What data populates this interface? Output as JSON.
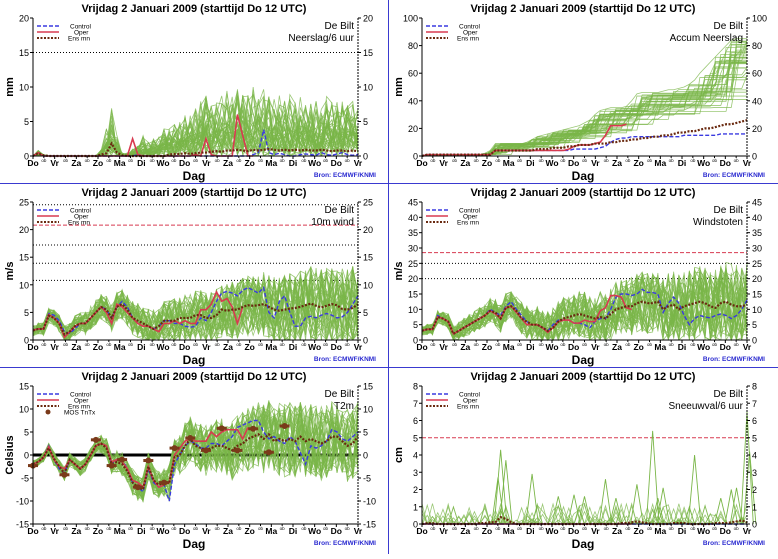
{
  "colors": {
    "control": "#3a3ae0",
    "oper": "#d83a50",
    "ensmn": "#6a2a10",
    "members": "#7ab648",
    "mos": "#7a3a1a",
    "source": "#2a2ad0",
    "separator": "#3a3ad0"
  },
  "common": {
    "title": "Vrijdag    2 Januari   2009  (starttijd  Do 12 UTC)",
    "xlabel": "Dag",
    "source": "Bron:  ECMWF/KNMI",
    "day_labels": [
      "Do",
      "Vr",
      "Za",
      "Zo",
      "Ma",
      "Di",
      "Wo",
      "Do",
      "Vr",
      "Za",
      "Zo",
      "Ma",
      "Di",
      "Wo",
      "Do",
      "Vr"
    ],
    "minor_label": "ob",
    "legend": {
      "control": "Control",
      "oper": "Oper",
      "ensmn": "Ens mn",
      "mos": "MOS TnTx"
    }
  },
  "chart_data": [
    {
      "type": "line",
      "station": "De Bilt",
      "variable": "Neerslag/6 uur",
      "ylabel": "mm",
      "ylim": [
        0,
        20
      ],
      "yticks": [
        0,
        5,
        10,
        15,
        20
      ],
      "ref_lines": [
        {
          "y": 15,
          "style": "dotted",
          "color": "#000"
        }
      ],
      "control": [
        0,
        0.5,
        0,
        0,
        0,
        0,
        0,
        0,
        0,
        0,
        0,
        0,
        0,
        0,
        0,
        0,
        0,
        0,
        0,
        0,
        0.2,
        0,
        0,
        0,
        0,
        0,
        0,
        0,
        0,
        0,
        0,
        0.2,
        0,
        0,
        0,
        0,
        0,
        0,
        0,
        0,
        0,
        0,
        0.2,
        0.5,
        3.8,
        0.5,
        0.2,
        0.4,
        0.2,
        0,
        0,
        0.2,
        0.3,
        0.2,
        0.1,
        0.5,
        0.2,
        0.1,
        0.3,
        0.5,
        0.2,
        0.1,
        0.2
      ],
      "oper": [
        0,
        0.5,
        0,
        0,
        0,
        0,
        0,
        0,
        0,
        0,
        0,
        0,
        0,
        0,
        0,
        0,
        0,
        0,
        0,
        2.5,
        0.2,
        0,
        0,
        0,
        0,
        0,
        0,
        0,
        0,
        0,
        0,
        0.2,
        0,
        2.5,
        0.2,
        0,
        0,
        0,
        0,
        6,
        3,
        0,
        0
      ],
      "ensmn": [
        0,
        0.4,
        0.1,
        0,
        0,
        0,
        0,
        0,
        0,
        0,
        0,
        0,
        0,
        0.2,
        0.4,
        1.8,
        0.5,
        0.1,
        0,
        0,
        0,
        0,
        0,
        0,
        0,
        0,
        0.2,
        0.3,
        0.3,
        0.4,
        0.3,
        0.4,
        0.5,
        0.5,
        0.6,
        0.7,
        0.6,
        0.8,
        0.8,
        0.9,
        0.8,
        0.7,
        0.9,
        0.8,
        0.9,
        1.0,
        0.9,
        0.8,
        0.9,
        0.8,
        0.9,
        0.8,
        0.9,
        0.8,
        0.8,
        0.9,
        0.8,
        0.7,
        0.8,
        0.8,
        0.7,
        0.8,
        0.7
      ],
      "spread_profile": [
        0.3,
        0.8,
        0.1,
        0,
        0,
        0,
        0,
        0,
        0,
        0,
        0,
        0,
        0,
        1,
        4,
        7,
        3,
        0.5,
        0.5,
        1,
        1.5,
        3,
        2,
        2.5,
        3,
        4,
        4,
        5,
        5,
        6,
        6,
        7,
        8,
        9,
        9,
        8,
        9,
        10,
        9,
        11,
        9,
        9,
        10,
        9,
        10,
        9,
        9,
        9,
        8,
        9,
        8,
        9,
        9,
        9,
        8,
        8,
        9,
        8,
        8,
        9,
        8,
        8,
        7
      ]
    },
    {
      "type": "line",
      "station": "De Bilt",
      "variable": "Accum Neerslag",
      "ylabel": "mm",
      "ylim": [
        0,
        100
      ],
      "yticks": [
        0,
        20,
        40,
        60,
        80,
        100
      ],
      "ref_lines": [],
      "control": [
        0,
        1,
        1,
        1,
        1,
        1,
        1,
        1,
        1,
        1,
        1,
        1,
        1,
        1,
        4,
        4,
        4,
        4,
        4,
        4,
        4,
        4,
        4,
        4,
        4,
        4,
        4,
        4,
        4,
        5,
        5,
        5,
        5,
        5,
        6,
        7,
        10,
        12,
        13,
        13,
        14,
        14,
        14,
        14,
        14,
        14,
        14,
        14,
        14,
        14,
        15,
        15,
        15,
        15,
        15,
        15,
        15,
        16,
        16,
        16,
        16,
        16,
        16
      ],
      "oper": [
        0,
        1,
        1,
        1,
        1,
        1,
        1,
        1,
        1,
        1,
        1,
        1,
        1,
        1,
        4,
        4,
        4,
        4,
        4,
        4,
        4,
        4,
        4,
        4,
        4,
        4,
        4,
        4,
        5,
        7,
        8,
        8,
        8,
        9,
        10,
        15,
        22,
        22,
        22,
        23
      ],
      "ensmn": [
        0,
        1,
        1,
        1,
        1,
        1,
        1,
        1,
        1,
        1,
        1,
        1,
        1,
        1,
        4,
        4,
        4,
        4,
        4,
        4,
        4,
        4,
        5,
        5,
        5,
        6,
        6,
        6,
        7,
        7,
        8,
        8,
        8,
        9,
        9,
        9,
        10,
        10,
        11,
        11,
        12,
        12,
        13,
        13,
        14,
        14,
        15,
        15,
        16,
        17,
        17,
        18,
        18,
        19,
        20,
        20,
        21,
        22,
        23,
        23,
        24,
        25,
        26
      ],
      "spread_max": [
        0,
        1,
        1,
        1,
        1,
        1,
        1,
        1,
        1,
        1,
        1,
        1,
        2,
        4,
        9,
        9,
        9,
        9,
        9,
        9,
        10,
        12,
        14,
        15,
        16,
        17,
        18,
        19,
        20,
        21,
        22,
        24,
        26,
        30,
        33,
        34,
        35,
        35,
        35,
        36,
        40,
        45,
        46,
        46,
        46,
        46,
        47,
        48,
        48,
        49,
        50,
        52,
        55,
        60,
        64,
        68,
        72,
        76,
        80,
        84,
        85,
        85,
        85
      ]
    },
    {
      "type": "line",
      "station": "De Bilt",
      "variable": "10m wind",
      "ylabel": "m/s",
      "ylim": [
        0,
        25
      ],
      "yticks": [
        0,
        5,
        10,
        15,
        20,
        25
      ],
      "ref_lines": [
        {
          "y": 10.8,
          "style": "dotted",
          "color": "#000"
        },
        {
          "y": 13.9,
          "style": "dotted",
          "color": "#000"
        },
        {
          "y": 17.2,
          "style": "dotted",
          "color": "#000"
        },
        {
          "y": 20.8,
          "style": "dashed",
          "color": "#d83a50"
        },
        {
          "y": 24.5,
          "style": "dotted",
          "color": "#000"
        }
      ],
      "control": [
        1.8,
        2,
        2,
        4.8,
        4.5,
        3.5,
        1.5,
        1.2,
        2,
        3,
        3,
        4,
        5,
        6,
        5.5,
        4,
        6,
        7,
        6,
        4,
        3,
        2.5,
        2.5,
        2,
        2.5,
        3.5,
        3.5,
        3,
        3,
        2.5,
        2.3,
        2.5,
        4,
        3.5,
        5,
        7,
        8.5,
        8.8,
        8.5,
        8,
        9,
        9.5,
        9,
        8.5,
        9.5,
        5,
        4,
        7,
        8,
        5,
        2.5,
        2.5,
        4,
        4.3,
        4,
        4.5,
        4.8,
        4.5,
        4,
        4.2,
        5,
        6.5,
        8
      ],
      "oper": [
        1.8,
        2,
        2,
        4.6,
        4,
        3,
        0.5,
        1.5,
        2.5,
        3,
        3,
        4,
        5,
        6,
        5,
        3,
        6.5,
        6,
        5,
        4,
        3,
        2.5,
        2.5,
        2,
        1.5,
        3,
        3,
        3.5,
        3,
        3.5,
        3,
        3,
        5.5,
        5.5,
        6.5,
        8.7,
        7,
        7.5,
        6,
        3,
        6
      ],
      "ensmn": [
        1.7,
        2,
        2,
        4.4,
        4,
        3,
        1,
        1.5,
        2.5,
        3,
        3,
        4,
        5,
        6,
        5.5,
        4,
        6,
        6.5,
        5.5,
        4,
        3.5,
        3,
        2.5,
        2,
        2.5,
        3.5,
        3.5,
        3.5,
        4,
        4,
        4,
        4.5,
        4.5,
        4,
        4,
        4.5,
        5.5,
        5.3,
        5.5,
        5.5,
        6,
        6.3,
        6.2,
        6.3,
        6.5,
        6,
        5.5,
        5.3,
        5.5,
        5.7,
        5.8,
        6,
        6.3,
        6.6,
        6.2,
        5.9,
        6.2,
        6.5,
        6.3,
        5.6,
        5.5,
        5.8,
        6.5
      ]
    },
    {
      "type": "line",
      "station": "De Bilt",
      "variable": "Windstoten",
      "ylabel": "m/s",
      "ylim": [
        0,
        45
      ],
      "yticks": [
        0,
        5,
        10,
        15,
        20,
        25,
        30,
        35,
        40,
        45
      ],
      "ref_lines": [
        {
          "y": 20,
          "style": "dotted",
          "color": "#000"
        },
        {
          "y": 25,
          "style": "dotted",
          "color": "#000"
        },
        {
          "y": 28.5,
          "style": "dashed",
          "color": "#d83a50"
        }
      ],
      "control": [
        3,
        3.5,
        3.5,
        8,
        7,
        6,
        2,
        3,
        4,
        5,
        6,
        7,
        8,
        10,
        9,
        8,
        11,
        12.5,
        10,
        8,
        6,
        5,
        5,
        4,
        3,
        5,
        6.5,
        6.5,
        6.5,
        5.5,
        5.5,
        5,
        4,
        6,
        7,
        7,
        10,
        14,
        15,
        15,
        14.5,
        15,
        16.5,
        15.5,
        15.5,
        15,
        9,
        12,
        14,
        12,
        8,
        5,
        7,
        8,
        7.5,
        7.2,
        8,
        8.5,
        8,
        7,
        8,
        10,
        13
      ],
      "oper": [
        3,
        3.5,
        3.5,
        7.5,
        7,
        6,
        2,
        3,
        4,
        5,
        6,
        7,
        8,
        9.5,
        8.5,
        7,
        10.5,
        11,
        9,
        7,
        5,
        5,
        5,
        4,
        2.5,
        4,
        6,
        6.5,
        6.5,
        5.5,
        5.5,
        6.5,
        6,
        6,
        9.5,
        10.5,
        14.5,
        14.5,
        14,
        10.5,
        10
      ],
      "ensmn": [
        3,
        3.5,
        3.5,
        7.5,
        7,
        6,
        2,
        3,
        4,
        5,
        6,
        7,
        8,
        9.5,
        9,
        7,
        10.5,
        11,
        9.5,
        7,
        6,
        5,
        5,
        4,
        3,
        4,
        6,
        7,
        7.5,
        8,
        8.5,
        8,
        7.5,
        7,
        7.5,
        7,
        8.5,
        10,
        10.5,
        11,
        11,
        12,
        12.5,
        12,
        12,
        12.5,
        10,
        11,
        11.5,
        10,
        11,
        11.5,
        12,
        12.5,
        12,
        11,
        10.5,
        12,
        12.5,
        11.5,
        11,
        11,
        11.5
      ]
    },
    {
      "type": "line",
      "station": "De Bilt",
      "variable": "T2m",
      "ylabel": "Celsius",
      "ylim": [
        -15,
        15
      ],
      "yticks": [
        -15,
        -10,
        -5,
        0,
        5,
        10,
        15
      ],
      "ref_lines": [
        {
          "y": 0,
          "style": "solid-thick",
          "color": "#000"
        }
      ],
      "control": [
        -2,
        -1.5,
        -0.5,
        2,
        -1,
        -3,
        -4,
        -1,
        -2,
        -3,
        -2,
        0,
        2,
        2.5,
        2,
        -2,
        -1,
        -1,
        -3,
        -6,
        -7,
        -8,
        -3,
        -6,
        -7,
        -6.5,
        -10,
        -2,
        0,
        2,
        3,
        2.5,
        1.5,
        1.5,
        2.5,
        2.5,
        2,
        3,
        4,
        6,
        6.5,
        7,
        7.5,
        7.5,
        5,
        3.5,
        4,
        3,
        2.5,
        4,
        3,
        0.5,
        -2,
        2,
        1.5,
        2,
        3,
        5.5,
        5,
        3.5,
        3,
        4,
        5
      ],
      "oper": [
        -2,
        -1.5,
        -0.5,
        1.8,
        -1,
        -2.5,
        -3,
        -1,
        -2,
        -3,
        -2,
        0,
        2,
        2.5,
        2,
        -1.5,
        -1,
        -1.5,
        -3,
        -5.5,
        -6,
        -7,
        -2.5,
        -5.5,
        -7,
        -6.5,
        -6,
        0,
        1.5,
        3,
        3.5,
        3,
        3,
        3,
        5,
        4,
        5,
        5.5,
        5.5,
        5.5,
        3.5,
        6
      ],
      "ensmn": [
        -2,
        -1.5,
        -0.5,
        1.5,
        -0.8,
        -2.5,
        -4,
        -1,
        -2,
        -3,
        -2,
        0,
        2,
        2.5,
        1.5,
        -2,
        -1.5,
        -2,
        -3.5,
        -6,
        -7,
        -7.5,
        -2.5,
        -5.5,
        -6.5,
        -6,
        -6,
        -0.5,
        0,
        2,
        3.5,
        2,
        1.5,
        1,
        1.5,
        2,
        2,
        1.5,
        1,
        2,
        2.5,
        3.5,
        4,
        4.5,
        3.5,
        4.5,
        3,
        3.5,
        3,
        3.5,
        3,
        4,
        3,
        3.5,
        3,
        2.5,
        3,
        4,
        4,
        3,
        2,
        2.5,
        4
      ],
      "mos": [
        [
          0,
          -2.3
        ],
        [
          6,
          -4.3
        ],
        [
          12,
          3.3
        ],
        [
          15,
          -2.3
        ],
        [
          17,
          -1
        ],
        [
          20,
          -7
        ],
        [
          22,
          -1.2
        ],
        [
          25,
          -6
        ],
        [
          27,
          1.5
        ],
        [
          30,
          3.7
        ],
        [
          33,
          1
        ],
        [
          36,
          5.8
        ],
        [
          39,
          1
        ],
        [
          42,
          5.7
        ],
        [
          45,
          0.6
        ],
        [
          48,
          6.3
        ]
      ],
      "spread_half": [
        0.8,
        0.8,
        1,
        1,
        1.5,
        1.5,
        1.5,
        1.5,
        1.5,
        1.5,
        1.5,
        1.5,
        1.5,
        2,
        2,
        2,
        2.5,
        2.5,
        2.5,
        3,
        3,
        3,
        3,
        3,
        3,
        3,
        4,
        4,
        4.5,
        5,
        5,
        5,
        5.5,
        5.5,
        6,
        6,
        6,
        6,
        6.5,
        6.5,
        7,
        7,
        7,
        7,
        7.5,
        7.5,
        8,
        8,
        8,
        8,
        8,
        8,
        8,
        8,
        8,
        8,
        8,
        8,
        8,
        8,
        8,
        8,
        8
      ]
    },
    {
      "type": "line",
      "station": "De Bilt",
      "variable": "Sneeuwval/6 uur",
      "ylabel": "cm",
      "ylim": [
        0,
        8
      ],
      "yticks": [
        0,
        1,
        2,
        3,
        4,
        5,
        6,
        7,
        8
      ],
      "ref_lines": [
        {
          "y": 5,
          "style": "dashed",
          "color": "#d83a50"
        }
      ],
      "control": [
        0,
        0,
        0,
        0,
        0,
        0,
        0,
        0,
        0,
        0,
        0,
        0,
        0,
        0,
        0,
        0,
        0,
        0,
        0,
        0,
        0,
        0,
        0,
        0,
        0,
        0,
        0,
        0,
        0,
        0,
        0,
        0,
        0,
        0,
        0,
        0,
        0,
        0,
        0,
        0,
        0,
        0,
        0,
        0,
        0,
        0,
        0,
        0,
        0,
        0,
        0,
        0,
        0,
        0,
        0,
        0,
        0,
        0,
        0,
        0,
        0,
        0,
        0
      ],
      "oper": [
        0,
        0,
        0,
        0,
        0,
        0,
        0,
        0,
        0,
        0,
        0,
        0,
        0,
        0,
        0,
        0,
        0,
        0,
        0,
        0,
        0,
        0,
        0,
        0,
        0,
        0,
        0,
        0,
        0,
        0,
        0,
        0,
        0,
        0,
        0,
        0,
        0,
        0,
        0,
        0,
        0
      ],
      "ensmn": [
        0,
        0.05,
        0.05,
        0,
        0,
        0,
        0,
        0,
        0,
        0,
        0,
        0.05,
        0.05,
        0.1,
        0.1,
        0.4,
        0.3,
        0.1,
        0,
        0,
        0,
        0,
        0,
        0,
        0,
        0,
        0,
        0,
        0,
        0,
        0,
        0,
        0,
        0,
        0,
        0,
        0,
        0,
        0.05,
        0.05,
        0.1,
        0.15,
        0.1,
        0.05,
        0,
        0,
        0,
        0,
        0.05,
        0.05,
        0.05,
        0,
        0,
        0,
        0,
        0,
        0.05,
        0.05,
        0.05,
        0.1,
        0.15,
        0.2,
        0.1
      ],
      "peaks": [
        [
          15,
          4.3
        ],
        [
          16,
          3.7
        ],
        [
          14.5,
          2.7
        ],
        [
          21,
          2.9
        ],
        [
          26,
          1.6
        ],
        [
          29,
          1.7
        ],
        [
          31,
          1.6
        ],
        [
          35,
          2.6
        ],
        [
          37,
          1.5
        ],
        [
          41,
          2.3
        ],
        [
          44,
          5.4
        ],
        [
          45,
          1.5
        ],
        [
          46,
          2.1
        ],
        [
          52,
          4
        ],
        [
          57,
          1.5
        ],
        [
          59,
          2
        ],
        [
          60,
          2.1
        ],
        [
          62,
          6.5
        ],
        [
          62.5,
          4.2
        ]
      ]
    }
  ]
}
